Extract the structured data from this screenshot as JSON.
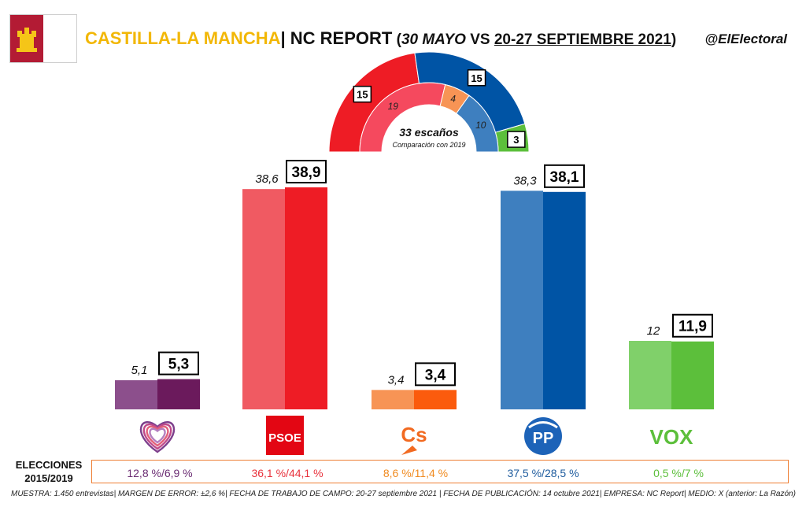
{
  "header": {
    "region": "CASTILLA-LA MANCHA",
    "separator": "| NC REPORT",
    "open_paren": " (",
    "date_prev": "30 MAYO",
    "vs": " VS ",
    "date_current": "20-27 SEPTIEMBRE 2021",
    "close_paren": ")",
    "handle": "@ElElectoral"
  },
  "colors": {
    "region_title": "#f2b705",
    "flag_red": "#b31b34",
    "flag_castle": "#f5c518",
    "results_border": "#ee7e33"
  },
  "chart_data": {
    "type": "bar",
    "categories": [
      "Podemos",
      "PSOE",
      "Cs",
      "PP",
      "VOX"
    ],
    "series": [
      {
        "values": [
          5.1,
          38.6,
          3.4,
          38.3,
          12
        ],
        "labels": [
          "5,1",
          "38,6",
          "3,4",
          "38,3",
          "12"
        ]
      },
      {
        "values": [
          5.3,
          38.9,
          3.4,
          38.1,
          11.9
        ],
        "labels": [
          "5,3",
          "38,9",
          "3,4",
          "38,1",
          "11,9"
        ]
      }
    ],
    "colors_previous": [
      "#8c4f8c",
      "#f05a62",
      "#f79455",
      "#3e7fbf",
      "#80d06a"
    ],
    "colors_current": [
      "#6b1a5c",
      "#ee1c25",
      "#fb5b0d",
      "#0054a5",
      "#5cbf3b"
    ],
    "logos": [
      "",
      "PSOE",
      "Cs",
      "PP",
      "VOX"
    ],
    "ylim": [
      0,
      45
    ]
  },
  "seats": {
    "total_label": "33 escaños",
    "subtitle": "Comparación con 2019",
    "total": 33,
    "inner": [
      {
        "party": "PSOE",
        "value": 19,
        "label": "19",
        "color": "#f5495e"
      },
      {
        "party": "Cs",
        "value": 4,
        "label": "4",
        "color": "#f79455"
      },
      {
        "party": "PP",
        "value": 10,
        "label": "10",
        "color": "#3e7fbf"
      }
    ],
    "outer": [
      {
        "party": "PSOE",
        "value": 15,
        "label": "15",
        "color": "#ee1c25"
      },
      {
        "party": "PP",
        "value": 15,
        "label": "15",
        "color": "#0054a5"
      },
      {
        "party": "VOX",
        "value": 3,
        "label": "3",
        "color": "#5cbf3b"
      }
    ]
  },
  "results": {
    "label": "ELECCIONES 2015/2019",
    "values": [
      "12,8 %/6,9 %",
      "36,1 %/44,1 %",
      "8,6 %/11,4 %",
      "37,5 %/28,5 %",
      "0,5 %/7 %"
    ],
    "colors": [
      "#6b2d73",
      "#e8323c",
      "#f08a1f",
      "#1f5c9e",
      "#5cbf3b"
    ]
  },
  "footer": "MUESTRA: 1.450 entrevistas| MARGEN DE ERROR: ±2,6 %| FECHA DE TRABAJO DE CAMPO: 20-27 septiembre 2021 | FECHA DE PUBLICACIÓN: 14 octubre 2021| EMPRESA: NC Report| MEDIO: X (anterior: La Razón)"
}
